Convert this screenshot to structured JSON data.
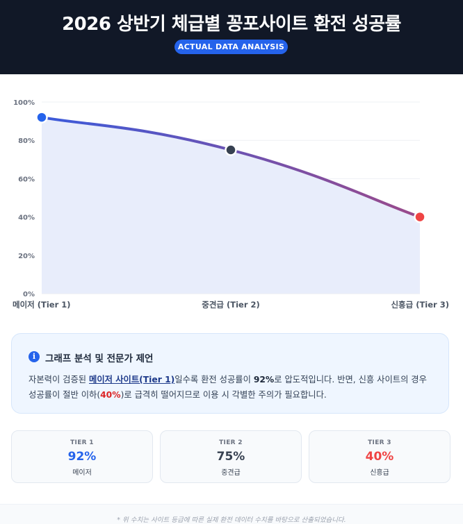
{
  "header": {
    "title": "2026 상반기 체급별 꽁포사이트 환전 성공률",
    "badge": "ACTUAL DATA ANALYSIS"
  },
  "colors": {
    "header_bg": "#111827",
    "accent_blue": "#2563eb",
    "tier1": "#2563eb",
    "tier2": "#374151",
    "tier3": "#ef4444",
    "line_start": "#3b5bdb",
    "line_end": "#9b4a8a",
    "area_fill": "#e8edfb"
  },
  "chart_data": {
    "type": "line",
    "categories": [
      "메이저 (Tier 1)",
      "중견급 (Tier 2)",
      "신흥급 (Tier 3)"
    ],
    "series": [
      {
        "values": [
          92,
          75,
          40
        ]
      }
    ],
    "point_colors": [
      "#2563eb",
      "#374151",
      "#ef4444"
    ],
    "ylim": [
      0,
      100
    ],
    "yticks": [
      "0%",
      "20%",
      "40%",
      "60%",
      "80%",
      "100%"
    ],
    "grid": true,
    "fill_area": true,
    "xlabel": "",
    "ylabel": ""
  },
  "analysis": {
    "title": "그래프 분석 및 전문가 제언",
    "text_1": "자본력이 검증된 ",
    "highlight_1": "메이저 사이트(Tier 1)",
    "text_2": "일수록 환전 성공률이 ",
    "highlight_2": "92%",
    "text_3": "로 압도적입니다. 반면, 신흥 사이트의 경우 성공률이 절반 이하(",
    "highlight_3": "40%",
    "text_4": ")로 급격히 떨어지므로 이용 시 각별한 주의가 필요합니다."
  },
  "cards": [
    {
      "tier": "TIER 1",
      "value": "92%",
      "name": "메이저"
    },
    {
      "tier": "TIER 2",
      "value": "75%",
      "name": "중견급"
    },
    {
      "tier": "TIER 3",
      "value": "40%",
      "name": "신흥급"
    }
  ],
  "footer": {
    "note": "* 위 수치는 사이트 등급에 따른 실제 환전 데이터 수치를 바탕으로 산출되었습니다."
  }
}
